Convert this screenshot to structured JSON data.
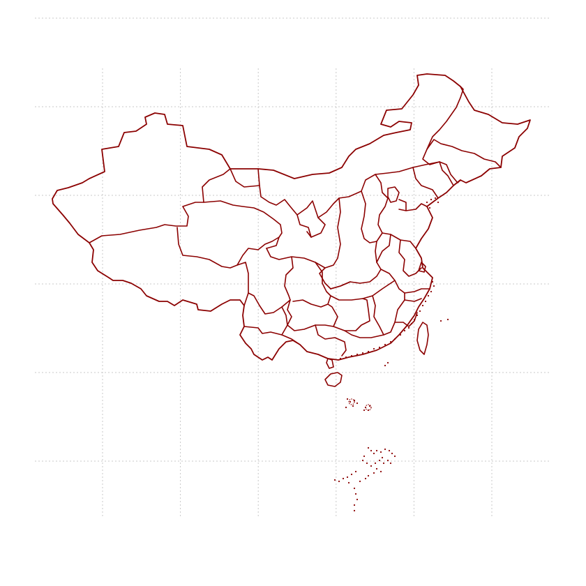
{
  "map": {
    "colors": {
      "background": "#ffffff",
      "boundary": "#8b0000",
      "grid": "#c8c8c8"
    },
    "grid": "on",
    "graticule": {
      "longitudes_deg_e": [
        80,
        90,
        100,
        110,
        120,
        130
      ],
      "latitudes_deg_n": [
        0,
        10,
        20,
        30,
        40,
        50
      ]
    },
    "features": {
      "provinces": 34,
      "south_china_sea_islands": "shown"
    }
  }
}
